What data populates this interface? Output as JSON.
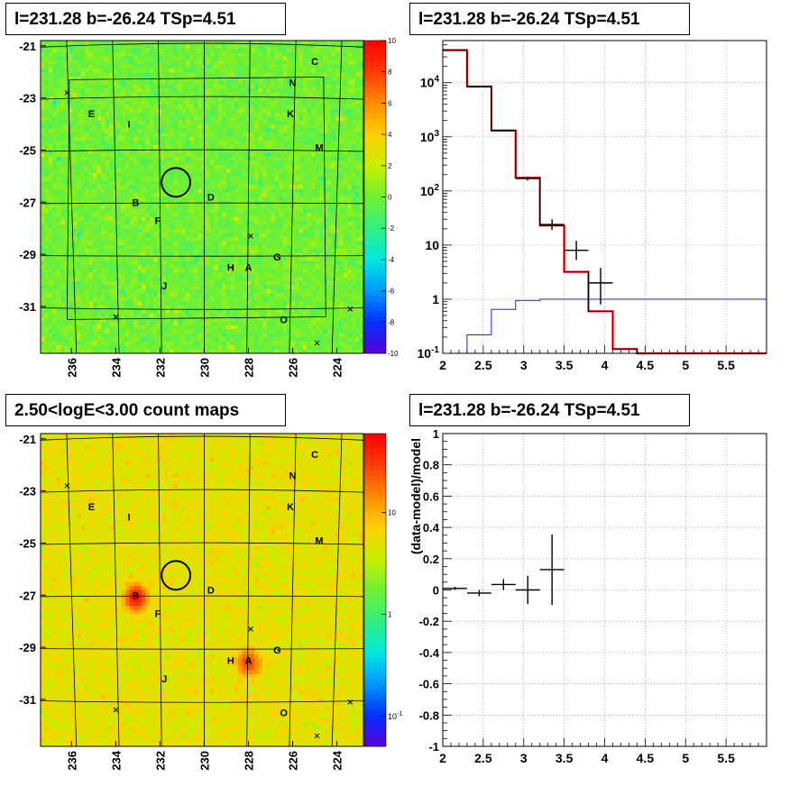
{
  "panels": {
    "tl_title": "l=231.28 b=-26.24 TSp=4.51",
    "tr_title": "l=231.28 b=-26.24 TSp=4.51",
    "bl_title": "2.50<logE<3.00 count maps",
    "br_title": "l=231.28 b=-26.24 TSp=4.51"
  },
  "chart_data": [
    {
      "type": "heatmap",
      "panel": "top-left",
      "title": "l=231.28 b=-26.24 TSp=4.51",
      "xlabel": "",
      "ylabel": "",
      "x_ticks": [
        "236",
        "234",
        "232",
        "230",
        "228",
        "226",
        "224"
      ],
      "y_ticks": [
        "-21",
        "-23",
        "-25",
        "-27",
        "-29",
        "-31"
      ],
      "xlim": [
        237.4,
        222.8
      ],
      "ylim": [
        -32.8,
        -20.8
      ],
      "colorbar": {
        "ticks": [
          "10",
          "8",
          "6",
          "4",
          "2",
          "0",
          "-2",
          "-4",
          "-6",
          "-8",
          "-10"
        ],
        "range": [
          -10,
          10
        ],
        "scale": "linear"
      },
      "colormap": [
        "#5a00d8",
        "#0030ff",
        "#0098ff",
        "#00e8e0",
        "#30f080",
        "#70f030",
        "#c8f000",
        "#ffd000",
        "#ff8c00",
        "#ff3a00",
        "#ff0000"
      ],
      "background_level": 0,
      "source_labels": [
        {
          "name": "C",
          "l": 225.0,
          "b": -21.6
        },
        {
          "name": "N",
          "l": 226.0,
          "b": -22.4
        },
        {
          "name": "E",
          "l": 235.1,
          "b": -23.6
        },
        {
          "name": "I",
          "l": 233.4,
          "b": -24.0
        },
        {
          "name": "K",
          "l": 226.1,
          "b": -23.6
        },
        {
          "name": "M",
          "l": 224.8,
          "b": -24.9
        },
        {
          "name": "D",
          "l": 229.7,
          "b": -26.8
        },
        {
          "name": "B",
          "l": 233.1,
          "b": -27.0
        },
        {
          "name": "F",
          "l": 232.1,
          "b": -27.7
        },
        {
          "name": "G",
          "l": 226.7,
          "b": -29.1
        },
        {
          "name": "H",
          "l": 228.8,
          "b": -29.5
        },
        {
          "name": "A",
          "l": 228.0,
          "b": -29.5
        },
        {
          "name": "J",
          "l": 231.8,
          "b": -30.2
        },
        {
          "name": "O",
          "l": 226.4,
          "b": -31.5
        }
      ],
      "crosses": [
        {
          "l": 236.2,
          "b": -22.8
        },
        {
          "l": 227.9,
          "b": -28.3
        },
        {
          "l": 234.0,
          "b": -31.4
        },
        {
          "l": 223.4,
          "b": -31.1
        },
        {
          "l": 224.9,
          "b": -32.4
        }
      ],
      "circle": {
        "l": 231.28,
        "b": -26.24,
        "r_deg": 0.55
      }
    },
    {
      "type": "line",
      "panel": "top-right",
      "title": "l=231.28 b=-26.24 TSp=4.51",
      "xlabel": "",
      "ylabel": "",
      "xlim": [
        2,
        6
      ],
      "ylim": [
        0.1,
        60000
      ],
      "yscale": "log",
      "grid": true,
      "x_ticks": [
        2,
        2.5,
        3,
        3.5,
        4,
        4.5,
        5,
        5.5
      ],
      "y_ticks": [
        {
          "value": 0.1,
          "label": "10^-1"
        },
        {
          "value": 1,
          "label": "1"
        },
        {
          "value": 10,
          "label": "10"
        },
        {
          "value": 100,
          "label": "10^2"
        },
        {
          "value": 1000,
          "label": "10^3"
        },
        {
          "value": 10000,
          "label": "10^4"
        }
      ],
      "bin_edges": [
        2.0,
        2.3,
        2.6,
        2.9,
        3.2,
        3.5,
        3.8,
        4.1,
        4.4,
        4.7,
        5.0,
        5.3,
        5.6,
        6.0
      ],
      "series": [
        {
          "values": [
            40000,
            8500,
            1300,
            175,
            23,
            3.2,
            0.6,
            0.12,
            0.1,
            0.1,
            0.1,
            0.1,
            0.1
          ],
          "color": "#ff0000",
          "style": "step"
        },
        {
          "values": [
            40000,
            8500,
            1300,
            175,
            23,
            3.2,
            0.6,
            0.12,
            0.1,
            0.1,
            0.1,
            0.1,
            0.1
          ],
          "color": "#000000",
          "style": "step"
        },
        {
          "values": [
            0.05,
            0.22,
            0.65,
            0.95,
            1,
            1,
            1,
            1,
            1,
            1,
            1,
            1,
            1
          ],
          "color": "#0000ff",
          "style": "step"
        },
        {
          "type": "errorbar",
          "color": "#000000",
          "points": [
            {
              "x": 2.15,
              "xerr": 0.15,
              "y": 40000,
              "ylow": 39500,
              "yhigh": 40500
            },
            {
              "x": 2.45,
              "xerr": 0.15,
              "y": 8400,
              "ylow": 8300,
              "yhigh": 8500
            },
            {
              "x": 2.75,
              "xerr": 0.15,
              "y": 1320,
              "ylow": 1280,
              "yhigh": 1360
            },
            {
              "x": 3.05,
              "xerr": 0.15,
              "y": 170,
              "ylow": 155,
              "yhigh": 185
            },
            {
              "x": 3.35,
              "xerr": 0.15,
              "y": 24,
              "ylow": 19,
              "yhigh": 30
            },
            {
              "x": 3.65,
              "xerr": 0.15,
              "y": 8,
              "ylow": 5.3,
              "yhigh": 12
            },
            {
              "x": 3.95,
              "xerr": 0.15,
              "y": 2,
              "ylow": 0.8,
              "yhigh": 3.8
            }
          ]
        }
      ]
    },
    {
      "type": "heatmap",
      "panel": "bottom-left",
      "title": "2.50<logE<3.00 count maps",
      "xlabel": "",
      "ylabel": "",
      "x_ticks": [
        "236",
        "234",
        "232",
        "230",
        "228",
        "226",
        "224"
      ],
      "y_ticks": [
        "-21",
        "-23",
        "-25",
        "-27",
        "-29",
        "-31"
      ],
      "xlim": [
        237.4,
        222.8
      ],
      "ylim": [
        -32.8,
        -20.8
      ],
      "colorbar": {
        "ticks": [
          "10",
          "1",
          "10^-1"
        ],
        "range": [
          0.05,
          60
        ],
        "scale": "log"
      },
      "colormap": [
        "#5a00d8",
        "#0030ff",
        "#0098ff",
        "#00e8e0",
        "#30f080",
        "#70f030",
        "#c8f000",
        "#ffd000",
        "#ff8c00",
        "#ff3a00",
        "#ff0000"
      ],
      "background_level": 5,
      "hot_spots": [
        {
          "name": "B",
          "l": 233.1,
          "b": -27.1,
          "peak": 40
        },
        {
          "name": "A",
          "l": 228.0,
          "b": -29.6,
          "peak": 25
        }
      ],
      "source_labels": [
        {
          "name": "C",
          "l": 225.0,
          "b": -21.6
        },
        {
          "name": "N",
          "l": 226.0,
          "b": -22.4
        },
        {
          "name": "E",
          "l": 235.1,
          "b": -23.6
        },
        {
          "name": "I",
          "l": 233.4,
          "b": -24.0
        },
        {
          "name": "K",
          "l": 226.1,
          "b": -23.6
        },
        {
          "name": "M",
          "l": 224.8,
          "b": -24.9
        },
        {
          "name": "D",
          "l": 229.7,
          "b": -26.8
        },
        {
          "name": "B",
          "l": 233.1,
          "b": -27.0
        },
        {
          "name": "F",
          "l": 232.1,
          "b": -27.7
        },
        {
          "name": "G",
          "l": 226.7,
          "b": -29.1
        },
        {
          "name": "H",
          "l": 228.8,
          "b": -29.5
        },
        {
          "name": "A",
          "l": 228.0,
          "b": -29.5
        },
        {
          "name": "J",
          "l": 231.8,
          "b": -30.2
        },
        {
          "name": "O",
          "l": 226.4,
          "b": -31.5
        }
      ],
      "crosses": [
        {
          "l": 236.2,
          "b": -22.8
        },
        {
          "l": 227.9,
          "b": -28.3
        },
        {
          "l": 234.0,
          "b": -31.4
        },
        {
          "l": 223.4,
          "b": -31.1
        },
        {
          "l": 224.9,
          "b": -32.4
        }
      ],
      "circle": {
        "l": 231.28,
        "b": -26.24,
        "r_deg": 0.55
      }
    },
    {
      "type": "scatter",
      "panel": "bottom-right",
      "title": "l=231.28 b=-26.24 TSp=4.51",
      "xlabel": "",
      "ylabel": "(data-model)/model",
      "xlim": [
        2,
        6
      ],
      "ylim": [
        -1,
        1
      ],
      "grid": true,
      "x_ticks": [
        2,
        2.5,
        3,
        3.5,
        4,
        4.5,
        5,
        5.5
      ],
      "y_ticks": [
        -1,
        -0.8,
        -0.6,
        -0.4,
        -0.2,
        0,
        0.2,
        0.4,
        0.6,
        0.8,
        1
      ],
      "series": [
        {
          "type": "errorbar",
          "color": "#000000",
          "points": [
            {
              "x": 2.15,
              "xerr": 0.15,
              "y": 0.01,
              "yerr": 0.01
            },
            {
              "x": 2.45,
              "xerr": 0.15,
              "y": -0.02,
              "yerr": 0.02
            },
            {
              "x": 2.75,
              "xerr": 0.15,
              "y": 0.035,
              "yerr": 0.035
            },
            {
              "x": 3.05,
              "xerr": 0.15,
              "y": 0.0,
              "yerr": 0.09
            },
            {
              "x": 3.35,
              "xerr": 0.15,
              "y": 0.13,
              "yerr": 0.225
            }
          ]
        }
      ]
    }
  ]
}
